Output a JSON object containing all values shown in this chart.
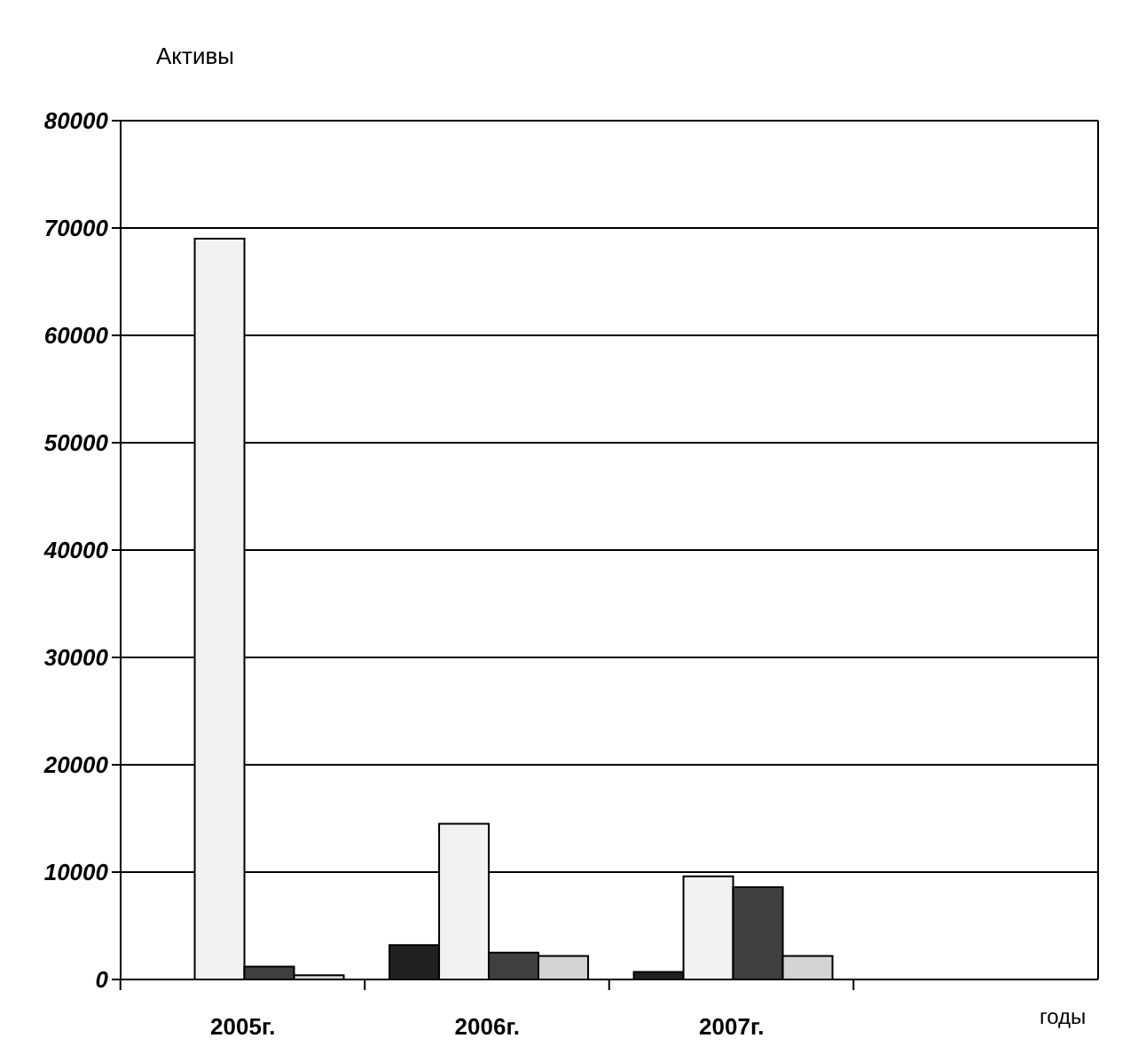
{
  "chart_data": {
    "type": "bar",
    "ylabel": "Активы",
    "xlabel": "годы",
    "categories": [
      "2005г.",
      "2006г.",
      "2007г.",
      null
    ],
    "series": [
      {
        "color": "#202020",
        "values": [
          0,
          3200,
          700,
          null
        ]
      },
      {
        "color": "#f2f2f2",
        "values": [
          69000,
          14500,
          9600,
          null
        ]
      },
      {
        "color": "#404040",
        "values": [
          1200,
          2500,
          8600,
          null
        ]
      },
      {
        "color": "#d4d4d4",
        "values": [
          400,
          2200,
          2200,
          null
        ]
      }
    ],
    "ylim": [
      0,
      80000
    ],
    "yticks": [
      0,
      10000,
      20000,
      30000,
      40000,
      50000,
      60000,
      70000,
      80000
    ],
    "grid": "y",
    "legend": false
  }
}
